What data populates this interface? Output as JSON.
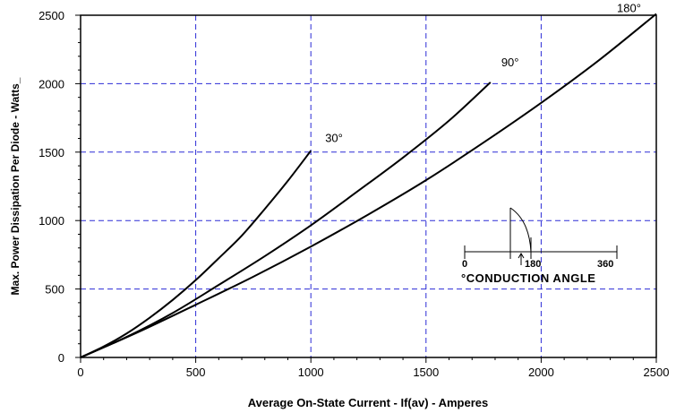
{
  "chart_data": {
    "type": "line",
    "title": "",
    "xlabel": "Average On-State Current - If(av) - Amperes",
    "ylabel": "Max. Power Dissipation Per Diode - Watts_",
    "xlim": [
      0,
      2500
    ],
    "ylim": [
      0,
      2500
    ],
    "x_ticks": [
      "0",
      "500",
      "1000",
      "1500",
      "2000",
      "2500"
    ],
    "y_ticks": [
      "0",
      "500",
      "1000",
      "1500",
      "2000",
      "2500"
    ],
    "grid": true,
    "series": [
      {
        "name": "30°",
        "x": [
          0,
          100,
          200,
          300,
          400,
          500,
          600,
          700,
          800,
          900,
          1000
        ],
        "y": [
          0,
          80,
          175,
          290,
          420,
          565,
          725,
          890,
          1085,
          1290,
          1510
        ]
      },
      {
        "name": "90°",
        "x": [
          0,
          200,
          400,
          600,
          800,
          1000,
          1200,
          1400,
          1600,
          1780
        ],
        "y": [
          0,
          150,
          325,
          530,
          740,
          965,
          1210,
          1460,
          1730,
          2010
        ]
      },
      {
        "name": "180°",
        "x": [
          0,
          250,
          500,
          750,
          1000,
          1250,
          1500,
          1750,
          2000,
          2250,
          2500
        ],
        "y": [
          0,
          185,
          385,
          590,
          810,
          1045,
          1295,
          1570,
          1860,
          2170,
          2510
        ]
      }
    ],
    "inset": {
      "title": "°CONDUCTION ANGLE",
      "ticks": [
        "0",
        "180",
        "360"
      ]
    }
  }
}
